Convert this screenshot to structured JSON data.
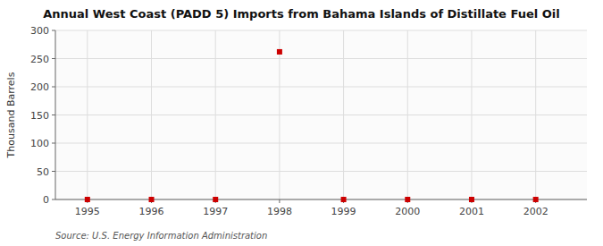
{
  "chart_data": {
    "type": "scatter",
    "title": "Annual West Coast (PADD 5) Imports from Bahama Islands of Distillate Fuel Oil",
    "ylabel": "Thousand Barrels",
    "source": "Source: U.S. Energy Information Administration",
    "x": [
      1995,
      1996,
      1997,
      1998,
      1999,
      2000,
      2001,
      2002
    ],
    "values": [
      0,
      0,
      0,
      262,
      0,
      0,
      0,
      0
    ],
    "xlim": [
      1994.5,
      2002.8
    ],
    "ylim": [
      0,
      300
    ],
    "xticks": [
      1995,
      1996,
      1997,
      1998,
      1999,
      2000,
      2001,
      2002
    ],
    "yticks": [
      0,
      50,
      100,
      150,
      200,
      250,
      300
    ],
    "grid": true,
    "color": "#cc0000",
    "marker": "square"
  }
}
